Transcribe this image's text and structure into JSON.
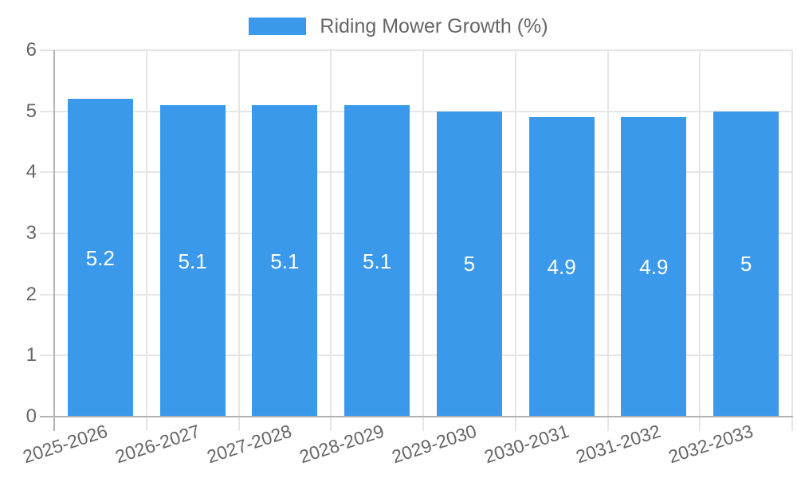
{
  "chart_data": {
    "type": "bar",
    "title": "",
    "legend": {
      "position": "top",
      "label": "Riding Mower Growth (%)"
    },
    "categories": [
      "2025-2026",
      "2026-2027",
      "2027-2028",
      "2028-2029",
      "2029-2030",
      "2030-2031",
      "2031-2032",
      "2032-2033"
    ],
    "series": [
      {
        "name": "Riding Mower Growth (%)",
        "values": [
          5.2,
          5.1,
          5.1,
          5.1,
          5,
          4.9,
          4.9,
          5
        ],
        "labels": [
          "5.2",
          "5.1",
          "5.1",
          "5.1",
          "5",
          "4.9",
          "4.9",
          "5"
        ]
      }
    ],
    "xlabel": "",
    "ylabel": "",
    "ylim": [
      0,
      6
    ],
    "yticks": [
      0,
      1,
      2,
      3,
      4,
      5,
      6
    ],
    "grid": true,
    "x_label_rotation_deg": -18
  },
  "colors": {
    "bar": "#3b99ec",
    "bar_label": "#ffffff",
    "grid_line": "#e6e6e6",
    "axis_line": "#b3b3b3",
    "tick_label": "#666666",
    "legend_text": "#666666",
    "background": "#ffffff"
  }
}
